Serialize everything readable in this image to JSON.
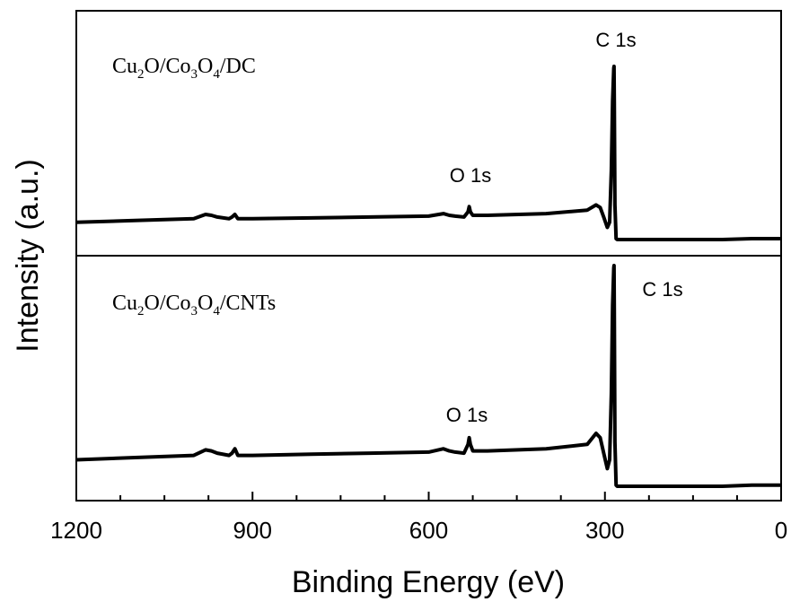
{
  "chart_data": {
    "type": "line",
    "xlabel": "Binding Energy (eV)",
    "ylabel": "Intensity (a.u.)",
    "xlim": [
      1200,
      0
    ],
    "x_reversed": true,
    "xticks": [
      "1200",
      "900",
      "600",
      "300",
      "0"
    ],
    "xtick_values": [
      1200,
      900,
      600,
      300,
      0
    ],
    "y_ticks_shown": false,
    "panels": [
      {
        "sample": {
          "base": "Cu",
          "s1": "2",
          "mid1": "O/Co",
          "s2": "3",
          "mid2": "O",
          "s3": "4",
          "suffix": "/DC"
        },
        "peaks": [
          {
            "label": "O 1s",
            "x": 531
          },
          {
            "label": "C 1s",
            "x": 284.5
          }
        ],
        "series": {
          "x": [
            1200,
            1100,
            1000,
            980,
            970,
            960,
            940,
            935,
            930,
            925,
            900,
            800,
            700,
            600,
            575,
            565,
            555,
            540,
            533,
            531,
            529,
            525,
            500,
            400,
            330,
            315,
            308,
            302,
            296,
            292,
            289,
            287,
            285,
            284.5,
            284,
            283,
            281,
            279,
            200,
            100,
            50,
            20,
            0
          ],
          "y": [
            0.1,
            0.11,
            0.12,
            0.145,
            0.14,
            0.13,
            0.12,
            0.13,
            0.145,
            0.12,
            0.12,
            0.125,
            0.13,
            0.135,
            0.15,
            0.14,
            0.135,
            0.13,
            0.16,
            0.19,
            0.16,
            0.14,
            0.14,
            0.15,
            0.17,
            0.2,
            0.185,
            0.13,
            0.07,
            0.1,
            0.4,
            0.8,
            0.99,
            1.0,
            0.8,
            0.2,
            0.005,
            0.0,
            0.0,
            0.0,
            0.005,
            0.005,
            0.005
          ]
        }
      },
      {
        "sample": {
          "base": "Cu",
          "s1": "2",
          "mid1": "O/Co",
          "s2": "3",
          "mid2": "O",
          "s3": "4",
          "suffix": "/CNTs"
        },
        "peaks": [
          {
            "label": "O 1s",
            "x": 531
          },
          {
            "label": "C 1s",
            "x": 284.5
          }
        ],
        "series": {
          "x": [
            1200,
            1100,
            1000,
            980,
            970,
            960,
            940,
            935,
            930,
            925,
            900,
            800,
            700,
            600,
            575,
            565,
            555,
            540,
            533,
            531,
            529,
            525,
            500,
            400,
            330,
            315,
            308,
            302,
            296,
            292,
            289,
            287,
            285,
            284.5,
            284,
            283,
            281,
            279,
            200,
            100,
            50,
            20,
            0
          ],
          "y": [
            0.12,
            0.13,
            0.14,
            0.165,
            0.16,
            0.15,
            0.14,
            0.15,
            0.17,
            0.14,
            0.14,
            0.145,
            0.15,
            0.155,
            0.17,
            0.16,
            0.155,
            0.15,
            0.19,
            0.22,
            0.19,
            0.16,
            0.16,
            0.17,
            0.19,
            0.24,
            0.22,
            0.15,
            0.08,
            0.12,
            0.42,
            0.82,
            0.99,
            1.0,
            0.8,
            0.2,
            0.005,
            0.0,
            0.0,
            0.0,
            0.005,
            0.005,
            0.005
          ]
        }
      }
    ]
  }
}
